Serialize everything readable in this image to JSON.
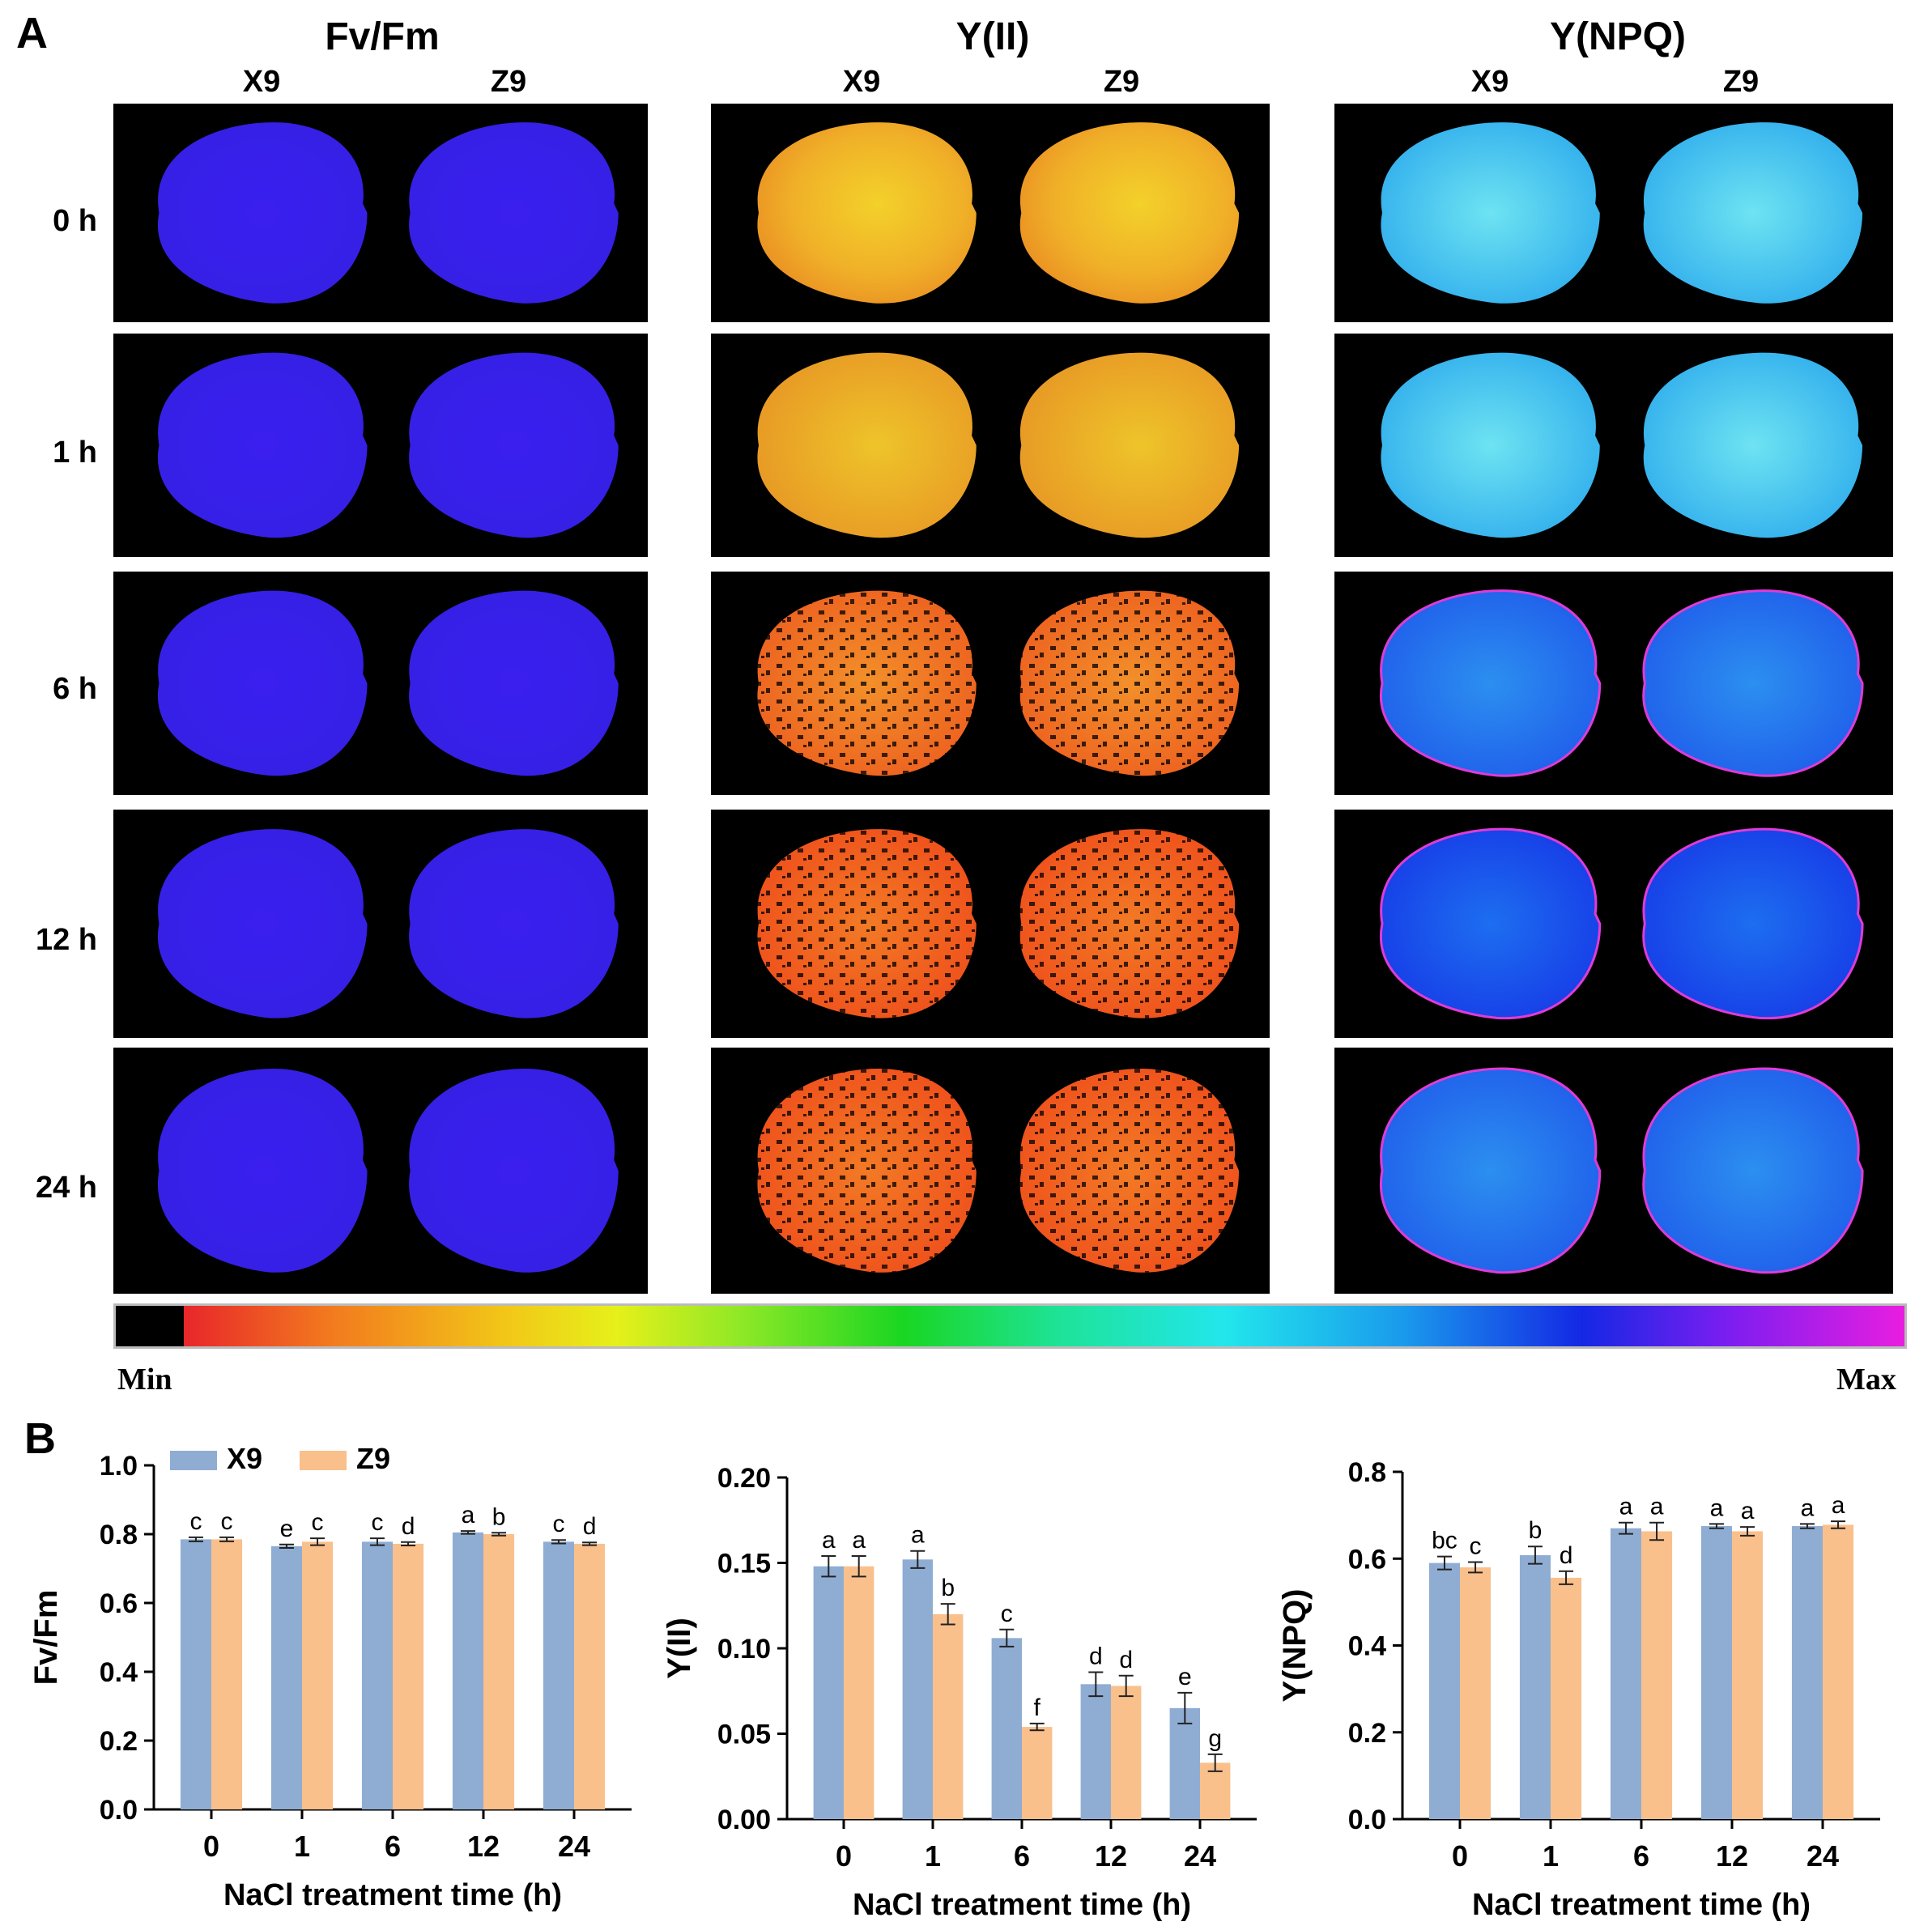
{
  "panel_a": {
    "label": "A",
    "columns": [
      {
        "title": "Fv/Fm",
        "sub": [
          "X9",
          "Z9"
        ]
      },
      {
        "title": "Y(II)",
        "sub": [
          "X9",
          "Z9"
        ]
      },
      {
        "title": "Y(NPQ)",
        "sub": [
          "X9",
          "Z9"
        ]
      }
    ],
    "rows": [
      "0 h",
      "1 h",
      "6 h",
      "12 h",
      "24 h"
    ],
    "colorbar": {
      "min_label": "Min",
      "max_label": "Max"
    }
  },
  "panel_b": {
    "label": "B"
  },
  "colors": {
    "X9": "#8fadd3",
    "Z9": "#f9c08c"
  },
  "chart_data": [
    {
      "type": "bar",
      "title": "",
      "xlabel": "NaCl treatment time (h)",
      "ylabel": "Fv/Fm",
      "categories": [
        "0",
        "1",
        "6",
        "12",
        "24"
      ],
      "ylim": [
        0,
        1.0
      ],
      "yticks": [
        "0.0",
        "0.2",
        "0.4",
        "0.6",
        "0.8",
        "1.0"
      ],
      "legend": {
        "position": "top-left",
        "entries": [
          "X9",
          "Z9"
        ]
      },
      "series": [
        {
          "name": "X9",
          "values": [
            0.785,
            0.765,
            0.778,
            0.805,
            0.778
          ],
          "errors": [
            0.006,
            0.005,
            0.01,
            0.004,
            0.005
          ],
          "letters": [
            "c",
            "e",
            "c",
            "a",
            "c"
          ]
        },
        {
          "name": "Z9",
          "values": [
            0.785,
            0.778,
            0.772,
            0.8,
            0.772
          ],
          "errors": [
            0.006,
            0.01,
            0.005,
            0.004,
            0.004
          ],
          "letters": [
            "c",
            "c",
            "d",
            "b",
            "d"
          ]
        }
      ]
    },
    {
      "type": "bar",
      "title": "",
      "xlabel": "NaCl treatment time (h)",
      "ylabel": "Y(II)",
      "categories": [
        "0",
        "1",
        "6",
        "12",
        "24"
      ],
      "ylim": [
        0,
        0.2
      ],
      "yticks": [
        "0.00",
        "0.05",
        "0.10",
        "0.15",
        "0.20"
      ],
      "series": [
        {
          "name": "X9",
          "values": [
            0.148,
            0.152,
            0.106,
            0.079,
            0.065
          ],
          "errors": [
            0.006,
            0.005,
            0.005,
            0.007,
            0.009
          ],
          "letters": [
            "a",
            "a",
            "c",
            "d",
            "e"
          ]
        },
        {
          "name": "Z9",
          "values": [
            0.148,
            0.12,
            0.054,
            0.078,
            0.033
          ],
          "errors": [
            0.006,
            0.006,
            0.002,
            0.006,
            0.005
          ],
          "letters": [
            "a",
            "b",
            "f",
            "d",
            "g"
          ]
        }
      ]
    },
    {
      "type": "bar",
      "title": "",
      "xlabel": "NaCl treatment time (h)",
      "ylabel": "Y(NPQ)",
      "categories": [
        "0",
        "1",
        "6",
        "12",
        "24"
      ],
      "ylim": [
        0,
        0.8
      ],
      "yticks": [
        "0.0",
        "0.2",
        "0.4",
        "0.6",
        "0.8"
      ],
      "series": [
        {
          "name": "X9",
          "values": [
            0.59,
            0.608,
            0.67,
            0.675,
            0.675
          ],
          "errors": [
            0.015,
            0.02,
            0.013,
            0.005,
            0.005
          ],
          "letters": [
            "bc",
            "b",
            "a",
            "a",
            "a"
          ]
        },
        {
          "name": "Z9",
          "values": [
            0.58,
            0.556,
            0.663,
            0.663,
            0.678
          ],
          "errors": [
            0.012,
            0.015,
            0.02,
            0.01,
            0.008
          ],
          "letters": [
            "c",
            "d",
            "a",
            "a",
            "a"
          ]
        }
      ]
    }
  ]
}
